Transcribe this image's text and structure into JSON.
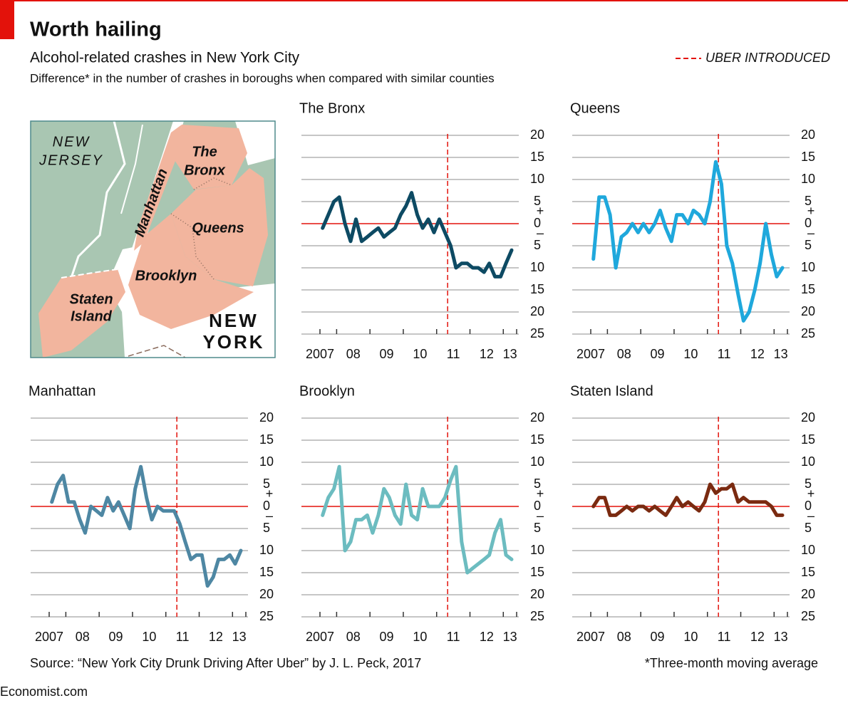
{
  "header": {
    "title": "Worth hailing",
    "subtitle": "Alcohol-related crashes in New York City",
    "description": "Difference* in the number of crashes in boroughs when compared with similar counties"
  },
  "legend": {
    "label": "UBER INTRODUCED",
    "color": "#e3120b"
  },
  "map": {
    "labels": [
      {
        "lines": [
          "NEW",
          "JERSEY"
        ]
      },
      {
        "lines": [
          "The",
          "Bronx"
        ]
      },
      {
        "lines": [
          "Manhattan"
        ]
      },
      {
        "lines": [
          "Queens"
        ]
      },
      {
        "lines": [
          "Brooklyn"
        ]
      },
      {
        "lines": [
          "Staten",
          "Island"
        ]
      },
      {
        "lines": [
          "NEW",
          "YORK"
        ]
      }
    ]
  },
  "chart_data": [
    {
      "type": "line",
      "title": "The Bronx",
      "color": "#0d4a63",
      "x": [
        2007.58,
        2007.75,
        2007.92,
        2008.08,
        2008.25,
        2008.42,
        2008.58,
        2008.75,
        2008.92,
        2009.08,
        2009.25,
        2009.42,
        2009.58,
        2009.75,
        2009.92,
        2010.08,
        2010.25,
        2010.42,
        2010.58,
        2010.75,
        2010.92,
        2011.08,
        2011.25,
        2011.42,
        2011.58,
        2011.75,
        2011.92,
        2012.08,
        2012.25,
        2012.42,
        2012.58,
        2012.75,
        2012.92,
        2013.08,
        2013.25
      ],
      "values": [
        -1,
        2,
        5,
        6,
        0,
        -4,
        1,
        -4,
        -3,
        -2,
        -1,
        -3,
        -2,
        -1,
        2,
        4,
        7,
        2,
        -1,
        1,
        -2,
        1,
        -2,
        -5,
        -10,
        -9,
        -9,
        -10,
        -10,
        -11,
        -9,
        -12,
        -12,
        -9,
        -6
      ],
      "xlim": [
        2007.5,
        2013.4
      ],
      "xticks": [
        {
          "value": 2007,
          "label": "2007"
        },
        {
          "value": 2008,
          "label": "08"
        },
        {
          "value": 2009,
          "label": "09"
        },
        {
          "value": 2010,
          "label": "10"
        },
        {
          "value": 2011,
          "label": "11"
        },
        {
          "value": 2012,
          "label": "12"
        },
        {
          "value": 2013,
          "label": "13"
        }
      ],
      "ylim": [
        -25,
        20
      ],
      "yticks": [
        20,
        15,
        10,
        5,
        0,
        {
          "value": -5,
          "label": "5"
        },
        {
          "value": -10,
          "label": "10"
        },
        {
          "value": -15,
          "label": "15"
        },
        {
          "value": -20,
          "label": "20"
        },
        {
          "value": -25,
          "label": "25"
        }
      ],
      "sign_labels": [
        "+",
        "–"
      ],
      "vline": 2011.33
    },
    {
      "type": "line",
      "title": "Queens",
      "color": "#1fa8dc",
      "x": [
        2007.58,
        2007.75,
        2007.92,
        2008.08,
        2008.25,
        2008.42,
        2008.58,
        2008.75,
        2008.92,
        2009.08,
        2009.25,
        2009.42,
        2009.58,
        2009.75,
        2009.92,
        2010.08,
        2010.25,
        2010.42,
        2010.58,
        2010.75,
        2010.92,
        2011.08,
        2011.25,
        2011.42,
        2011.58,
        2011.75,
        2011.92,
        2012.08,
        2012.25,
        2012.42,
        2012.58,
        2012.75,
        2012.92,
        2013.08,
        2013.25
      ],
      "values": [
        -8,
        6,
        6,
        2,
        -10,
        -3,
        -2,
        0,
        -2,
        0,
        -2,
        0,
        3,
        -1,
        -4,
        2,
        2,
        0,
        3,
        2,
        0,
        5,
        14,
        9,
        -5,
        -9,
        -16,
        -22,
        -20,
        -15,
        -9,
        0,
        -7,
        -12,
        -10
      ],
      "xlim": [
        2007.5,
        2013.4
      ],
      "xticks": [
        {
          "value": 2007,
          "label": "2007"
        },
        {
          "value": 2008,
          "label": "08"
        },
        {
          "value": 2009,
          "label": "09"
        },
        {
          "value": 2010,
          "label": "10"
        },
        {
          "value": 2011,
          "label": "11"
        },
        {
          "value": 2012,
          "label": "12"
        },
        {
          "value": 2013,
          "label": "13"
        }
      ],
      "ylim": [
        -25,
        20
      ],
      "yticks": [
        20,
        15,
        10,
        5,
        0,
        {
          "value": -5,
          "label": "5"
        },
        {
          "value": -10,
          "label": "10"
        },
        {
          "value": -15,
          "label": "15"
        },
        {
          "value": -20,
          "label": "20"
        },
        {
          "value": -25,
          "label": "25"
        }
      ],
      "sign_labels": [
        "+",
        "–"
      ],
      "vline": 2011.33
    },
    {
      "type": "line",
      "title": "Manhattan",
      "color": "#4e87a3",
      "x": [
        2007.58,
        2007.75,
        2007.92,
        2008.08,
        2008.25,
        2008.42,
        2008.58,
        2008.75,
        2008.92,
        2009.08,
        2009.25,
        2009.42,
        2009.58,
        2009.75,
        2009.92,
        2010.08,
        2010.25,
        2010.42,
        2010.58,
        2010.75,
        2010.92,
        2011.08,
        2011.25,
        2011.42,
        2011.58,
        2011.75,
        2011.92,
        2012.08,
        2012.25,
        2012.42,
        2012.58,
        2012.75,
        2012.92,
        2013.08,
        2013.25
      ],
      "values": [
        1,
        5,
        7,
        1,
        1,
        -3,
        -6,
        0,
        -1,
        -2,
        2,
        -1,
        1,
        -2,
        -5,
        4,
        9,
        2,
        -3,
        0,
        -1,
        -1,
        -1,
        -4,
        -8,
        -12,
        -11,
        -11,
        -18,
        -16,
        -12,
        -12,
        -11,
        -13,
        -10
      ],
      "xlim": [
        2007.5,
        2013.4
      ],
      "xticks": [
        {
          "value": 2007,
          "label": "2007"
        },
        {
          "value": 2008,
          "label": "08"
        },
        {
          "value": 2009,
          "label": "09"
        },
        {
          "value": 2010,
          "label": "10"
        },
        {
          "value": 2011,
          "label": "11"
        },
        {
          "value": 2012,
          "label": "12"
        },
        {
          "value": 2013,
          "label": "13"
        }
      ],
      "ylim": [
        -25,
        20
      ],
      "yticks": [
        20,
        15,
        10,
        5,
        0,
        {
          "value": -5,
          "label": "5"
        },
        {
          "value": -10,
          "label": "10"
        },
        {
          "value": -15,
          "label": "15"
        },
        {
          "value": -20,
          "label": "20"
        },
        {
          "value": -25,
          "label": "25"
        }
      ],
      "sign_labels": [
        "+",
        "–"
      ],
      "vline": 2011.33
    },
    {
      "type": "line",
      "title": "Brooklyn",
      "color": "#6cbcc0",
      "x": [
        2007.58,
        2007.75,
        2007.92,
        2008.08,
        2008.25,
        2008.42,
        2008.58,
        2008.75,
        2008.92,
        2009.08,
        2009.25,
        2009.42,
        2009.58,
        2009.75,
        2009.92,
        2010.08,
        2010.25,
        2010.42,
        2010.58,
        2010.75,
        2010.92,
        2011.08,
        2011.25,
        2011.42,
        2011.58,
        2011.75,
        2011.92,
        2012.08,
        2012.25,
        2012.42,
        2012.58,
        2012.75,
        2012.92,
        2013.08,
        2013.25
      ],
      "values": [
        -2,
        2,
        4,
        9,
        -10,
        -8,
        -3,
        -3,
        -2,
        -6,
        -2,
        4,
        2,
        -2,
        -4,
        5,
        -2,
        -3,
        4,
        0,
        0,
        0,
        2,
        6,
        9,
        -8,
        -15,
        -14,
        -13,
        -12,
        -11,
        -6,
        -3,
        -11,
        -12
      ],
      "xlim": [
        2007.5,
        2013.4
      ],
      "xticks": [
        {
          "value": 2007,
          "label": "2007"
        },
        {
          "value": 2008,
          "label": "08"
        },
        {
          "value": 2009,
          "label": "09"
        },
        {
          "value": 2010,
          "label": "10"
        },
        {
          "value": 2011,
          "label": "11"
        },
        {
          "value": 2012,
          "label": "12"
        },
        {
          "value": 2013,
          "label": "13"
        }
      ],
      "ylim": [
        -25,
        20
      ],
      "yticks": [
        20,
        15,
        10,
        5,
        0,
        {
          "value": -5,
          "label": "5"
        },
        {
          "value": -10,
          "label": "10"
        },
        {
          "value": -15,
          "label": "15"
        },
        {
          "value": -20,
          "label": "20"
        },
        {
          "value": -25,
          "label": "25"
        }
      ],
      "sign_labels": [
        "+",
        "–"
      ],
      "vline": 2011.33
    },
    {
      "type": "line",
      "title": "Staten Island",
      "color": "#7a2a10",
      "x": [
        2007.58,
        2007.75,
        2007.92,
        2008.08,
        2008.25,
        2008.42,
        2008.58,
        2008.75,
        2008.92,
        2009.08,
        2009.25,
        2009.42,
        2009.58,
        2009.75,
        2009.92,
        2010.08,
        2010.25,
        2010.42,
        2010.58,
        2010.75,
        2010.92,
        2011.08,
        2011.25,
        2011.42,
        2011.58,
        2011.75,
        2011.92,
        2012.08,
        2012.25,
        2012.42,
        2012.58,
        2012.75,
        2012.92,
        2013.08,
        2013.25
      ],
      "values": [
        0,
        2,
        2,
        -2,
        -2,
        -1,
        0,
        -1,
        0,
        0,
        -1,
        0,
        -1,
        -2,
        0,
        2,
        0,
        1,
        0,
        -1,
        1,
        5,
        3,
        4,
        4,
        5,
        1,
        2,
        1,
        1,
        1,
        1,
        0,
        -2,
        -2
      ],
      "xlim": [
        2007.5,
        2013.4
      ],
      "xticks": [
        {
          "value": 2007,
          "label": "2007"
        },
        {
          "value": 2008,
          "label": "08"
        },
        {
          "value": 2009,
          "label": "09"
        },
        {
          "value": 2010,
          "label": "10"
        },
        {
          "value": 2011,
          "label": "11"
        },
        {
          "value": 2012,
          "label": "12"
        },
        {
          "value": 2013,
          "label": "13"
        }
      ],
      "ylim": [
        -25,
        20
      ],
      "yticks": [
        20,
        15,
        10,
        5,
        0,
        {
          "value": -5,
          "label": "5"
        },
        {
          "value": -10,
          "label": "10"
        },
        {
          "value": -15,
          "label": "15"
        },
        {
          "value": -20,
          "label": "20"
        },
        {
          "value": -25,
          "label": "25"
        }
      ],
      "sign_labels": [
        "+",
        "–"
      ],
      "vline": 2011.33
    }
  ],
  "footer": {
    "source": "Source: “New York City Drunk Driving After Uber” by J. L. Peck, 2017",
    "note": "*Three-month moving average",
    "brand": "Economist.com"
  }
}
